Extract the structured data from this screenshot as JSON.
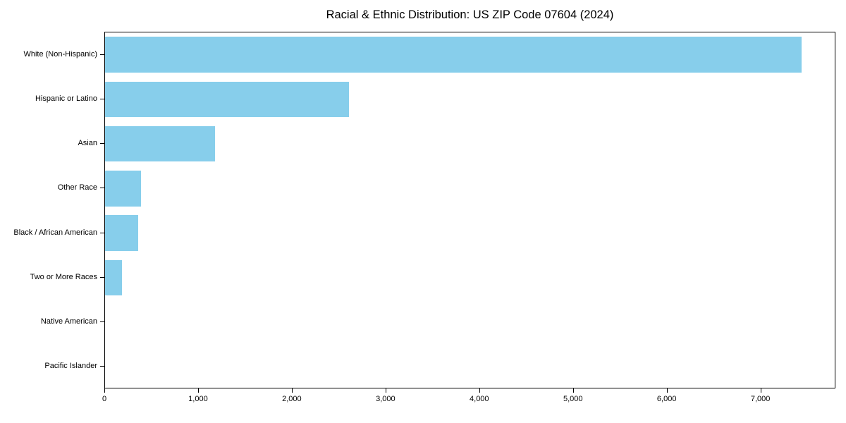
{
  "title": "Racial & Ethnic Distribution: US ZIP Code 07604 (2024)",
  "colors": {
    "bar": "#87CEEB",
    "axis": "#000000",
    "text": "#000000",
    "background": "#ffffff"
  },
  "chart_data": {
    "type": "bar",
    "orientation": "horizontal",
    "title": "Racial & Ethnic Distribution: US ZIP Code 07604 (2024)",
    "categories": [
      "White (Non-Hispanic)",
      "Hispanic or Latino",
      "Asian",
      "Other Race",
      "Black / African American",
      "Two or More Races",
      "Native American",
      "Pacific Islander"
    ],
    "values": [
      7430,
      2600,
      1170,
      380,
      350,
      180,
      0,
      0
    ],
    "xlabel": "",
    "ylabel": "",
    "xlim": [
      0,
      7800
    ],
    "xticks": [
      0,
      1000,
      2000,
      3000,
      4000,
      5000,
      6000,
      7000
    ],
    "xtick_labels": [
      "0",
      "1,000",
      "2,000",
      "3,000",
      "4,000",
      "5,000",
      "6,000",
      "7,000"
    ],
    "grid": false,
    "legend": null
  }
}
